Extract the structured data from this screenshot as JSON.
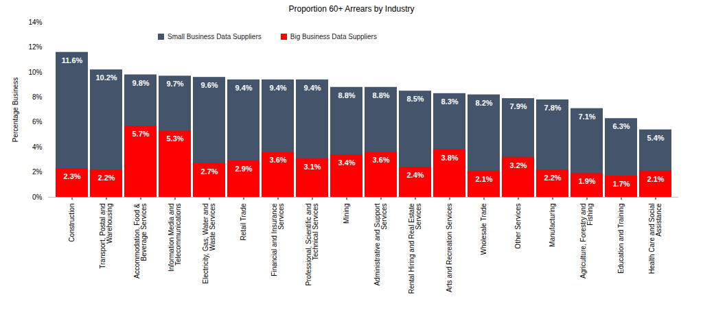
{
  "chart_data": {
    "type": "bar",
    "title": "Proportion 60+ Arrears by Industry",
    "y_label": "Percentage Business",
    "categories": [
      "Construction",
      "Transport, Postal and Warehousing",
      "Accommodation, Food & Beverage Services",
      "Information Media and Telecommunications",
      "Electricity, Gas, Water and Waste Services",
      "Retail Trade",
      "Financial and Insurance Services",
      "Professional, Scientific and Technical Services",
      "Mining",
      "Administrative and Support Services",
      "Rental Hiring and Real Estate Services",
      "Arts and Recreation Services",
      "Wholesale Trade",
      "Other Services",
      "Manufacturing",
      "Agriculture, Forestry and Fishing",
      "Education and Training",
      "Health Care and Social Assistance"
    ],
    "series": [
      {
        "name": "Small Business Data Suppliers",
        "color": "#44546A",
        "values": [
          11.6,
          10.2,
          9.8,
          9.7,
          9.6,
          9.4,
          9.4,
          9.4,
          8.8,
          8.8,
          8.5,
          8.3,
          8.2,
          7.9,
          7.8,
          7.1,
          6.3,
          5.4
        ],
        "value_labels": [
          "11.6%",
          "10.2%",
          "9.8%",
          "9.7%",
          "9.6%",
          "9.4%",
          "9.4%",
          "9.4%",
          "8.8%",
          "8.8%",
          "8.5%",
          "8.3%",
          "8.2%",
          "7.9%",
          "7.8%",
          "7.1%",
          "6.3%",
          "5.4%"
        ]
      },
      {
        "name": "Big Business Data Suppliers",
        "color": "#FF0000",
        "values": [
          2.3,
          2.2,
          5.7,
          5.3,
          2.7,
          2.9,
          3.6,
          3.1,
          3.4,
          3.6,
          2.4,
          3.8,
          2.1,
          3.2,
          2.2,
          1.9,
          1.7,
          2.1
        ],
        "value_labels": [
          "2.3%",
          "2.2%",
          "5.7%",
          "5.3%",
          "2.7%",
          "2.9%",
          "3.6%",
          "3.1%",
          "3.4%",
          "3.6%",
          "2.4%",
          "3.8%",
          "2.1%",
          "3.2%",
          "2.2%",
          "1.9%",
          "1.7%",
          "2.1%"
        ]
      }
    ],
    "ylim": [
      0,
      14
    ],
    "yticks": [
      {
        "value": 0,
        "label": "0%"
      },
      {
        "value": 2,
        "label": "2%"
      },
      {
        "value": 4,
        "label": "4%"
      },
      {
        "value": 6,
        "label": "6%"
      },
      {
        "value": 8,
        "label": "8%"
      },
      {
        "value": 10,
        "label": "10%"
      },
      {
        "value": 12,
        "label": "12%"
      },
      {
        "value": 14,
        "label": "14%"
      }
    ],
    "stacked": false,
    "data_labels": true,
    "legend": "top",
    "grid": false
  }
}
